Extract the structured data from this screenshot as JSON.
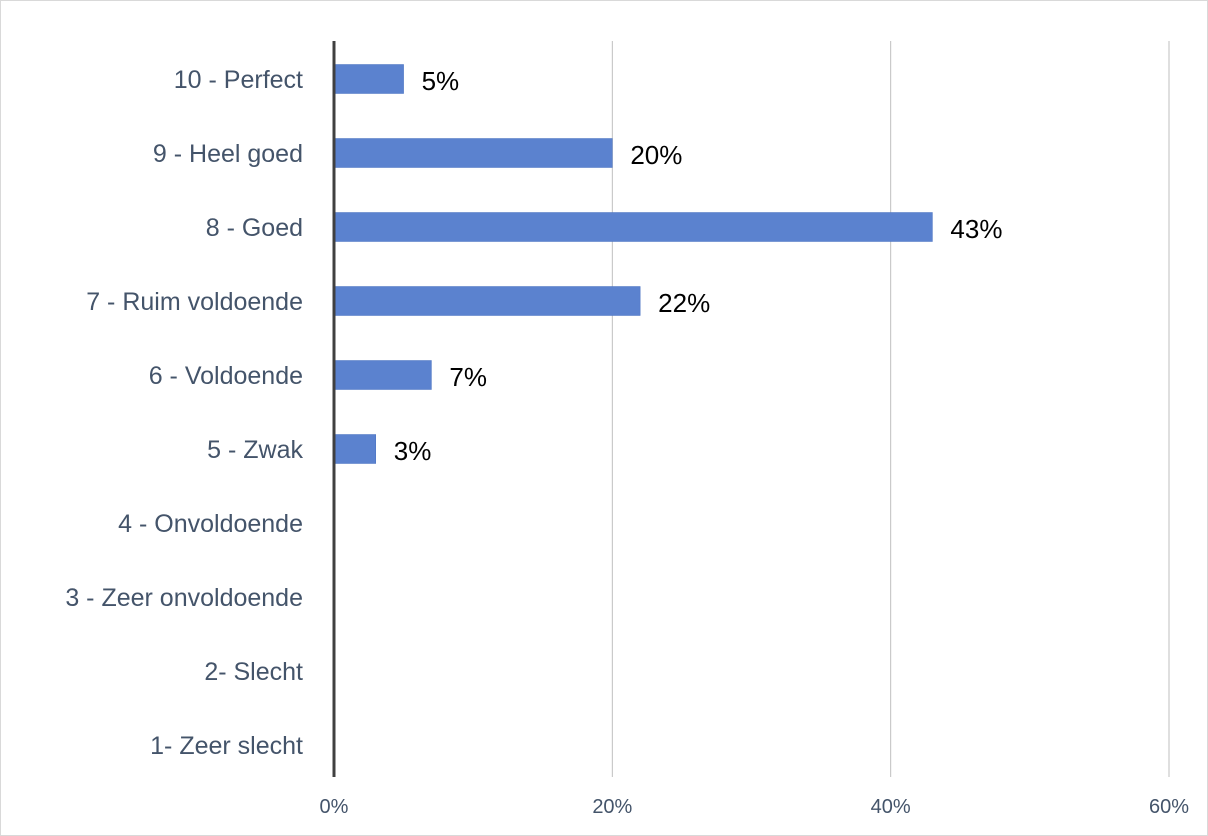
{
  "chart_data": {
    "type": "bar",
    "orientation": "horizontal",
    "title": "",
    "xlabel": "",
    "ylabel": "",
    "categories": [
      "10 - Perfect",
      "9 - Heel goed",
      "8 - Goed",
      "7 - Ruim voldoende",
      "6 - Voldoende",
      "5 - Zwak",
      "4 - Onvoldoende",
      "3 - Zeer onvoldoende",
      "2- Slecht",
      "1- Zeer slecht"
    ],
    "values": [
      5,
      20,
      43,
      22,
      7,
      3,
      null,
      null,
      null,
      null
    ],
    "data_labels": [
      "5%",
      "20%",
      "43%",
      "22%",
      "7%",
      "3%",
      "",
      "",
      "",
      ""
    ],
    "xlim": [
      0,
      60
    ],
    "x_ticks": [
      0,
      20,
      40,
      60
    ],
    "x_tick_labels": [
      "0%",
      "20%",
      "40%",
      "60%"
    ],
    "grid": "vertical",
    "legend": "none",
    "colors": {
      "bar": "#5b82cf",
      "bar_edge": "#4a72c0",
      "axis": "#404040",
      "gridline": "#bfbfbf",
      "category_text": "#44546a",
      "tick_text": "#44546a",
      "data_label_text": "#000000",
      "border": "#d9d9d9"
    }
  }
}
